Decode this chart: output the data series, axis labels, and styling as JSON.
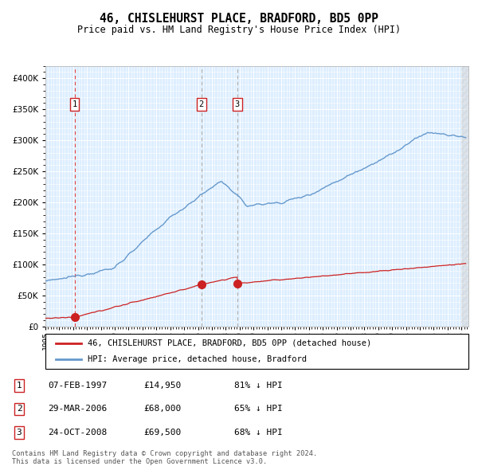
{
  "title": "46, CHISLEHURST PLACE, BRADFORD, BD5 0PP",
  "subtitle": "Price paid vs. HM Land Registry's House Price Index (HPI)",
  "footnote": "Contains HM Land Registry data © Crown copyright and database right 2024.\nThis data is licensed under the Open Government Licence v3.0.",
  "legend_line1": "46, CHISLEHURST PLACE, BRADFORD, BD5 0PP (detached house)",
  "legend_line2": "HPI: Average price, detached house, Bradford",
  "transactions": [
    {
      "num": 1,
      "date": "07-FEB-1997",
      "price": 14950,
      "pct": "81%",
      "dir": "↓",
      "year": 1997.1
    },
    {
      "num": 2,
      "date": "29-MAR-2006",
      "price": 68000,
      "pct": "65%",
      "dir": "↓",
      "year": 2006.25
    },
    {
      "num": 3,
      "date": "24-OCT-2008",
      "price": 69500,
      "pct": "68%",
      "dir": "↓",
      "year": 2008.83
    }
  ],
  "hpi_color": "#6699cc",
  "price_color": "#cc2222",
  "bg_color": "#ffffff",
  "plot_bg": "#ddeeff",
  "grid_color": "#ffffff",
  "vline1_color": "#dd4444",
  "vline23_color": "#aaaaaa",
  "ylim": [
    0,
    420000
  ],
  "xlim_start": 1995.0,
  "xlim_end": 2025.5
}
